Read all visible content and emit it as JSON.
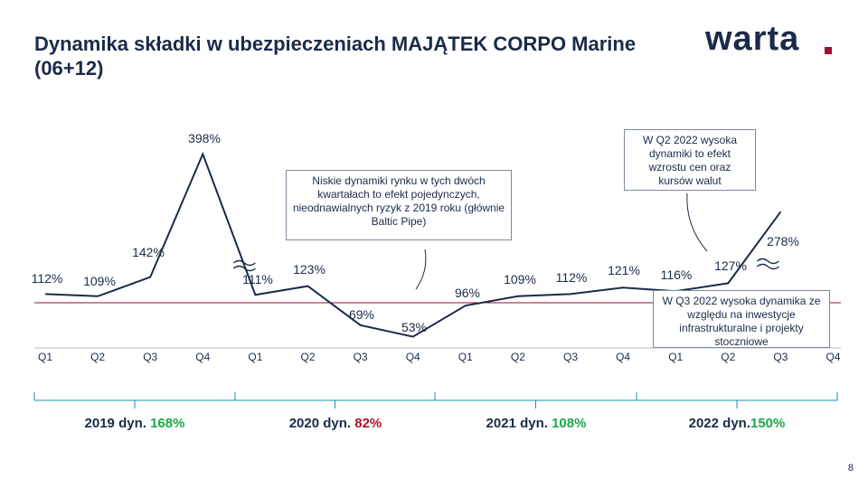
{
  "title": "Dynamika składki w ubezpieczeniach MAJĄTEK CORPO Marine (06+12)",
  "logo_text": "warta",
  "page_number": "8",
  "colors": {
    "text": "#1a2b48",
    "positive": "#1aa84a",
    "negative": "#b0122c",
    "baseline": "#8a1030",
    "line": "#1a2b48"
  },
  "notes": {
    "n2020": "Niskie dynamiki rynku w tych dwóch kwartałach  to efekt pojedynczych, nieodnawialnych  ryzyk z 2019 roku (głównie Baltic Pipe)",
    "n2022q2": "W Q2 2022 wysoka dynamiki to efekt wzrostu cen oraz kursów walut",
    "n2022q3": "W Q3 2022 wysoka dynamika ze względu na inwestycje infrastrukturalne i projekty stoczniowe"
  },
  "years": [
    {
      "label": "2019 dyn. ",
      "value": "168%",
      "status": "positive"
    },
    {
      "label": "2020 dyn. ",
      "value": "82%",
      "status": "negative"
    },
    {
      "label": "2021 dyn. ",
      "value": "108%",
      "status": "positive"
    },
    {
      "label": "2022 dyn.",
      "value": "150%",
      "status": "positive"
    }
  ],
  "chart_data": {
    "type": "line",
    "title": "",
    "xlabel": "",
    "ylabel": "",
    "categories": [
      "Q1",
      "Q2",
      "Q3",
      "Q4",
      "Q1",
      "Q2",
      "Q3",
      "Q4",
      "Q1",
      "Q2",
      "Q3",
      "Q4",
      "Q1",
      "Q2",
      "Q3",
      "Q4"
    ],
    "year_groups": [
      "2019",
      "2020",
      "2021",
      "2022"
    ],
    "values": [
      112,
      109,
      142,
      398,
      111,
      123,
      69,
      53,
      96,
      109,
      112,
      121,
      116,
      127,
      278,
      null
    ],
    "labels": [
      "112%",
      "109%",
      "142%",
      "398%",
      "111%",
      "123%",
      "69%",
      "53%",
      "96%",
      "109%",
      "112%",
      "121%",
      "116%",
      "127%",
      "278%",
      ""
    ],
    "reference_line": 100,
    "axis_breaks": [
      "2019 Q4",
      "2022 Q3"
    ],
    "grid": false
  }
}
